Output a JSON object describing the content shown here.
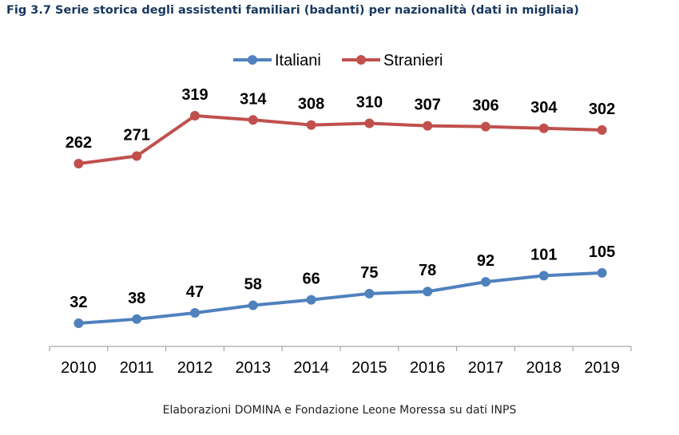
{
  "title": "Fig 3.7 Serie storica degli assistenti familiari (badanti) per nazionalità (dati in migliaia)",
  "source": "Elaborazioni DOMINA e Fondazione Leone Moressa su dati INPS",
  "chart_data": {
    "type": "line",
    "title": "Fig 3.7 Serie storica degli assistenti familiari (badanti) per nazionalità (dati in migliaia)",
    "xlabel": "",
    "ylabel": "",
    "categories": [
      "2010",
      "2011",
      "2012",
      "2013",
      "2014",
      "2015",
      "2016",
      "2017",
      "2018",
      "2019"
    ],
    "series": [
      {
        "name": "Italiani",
        "color": "#4f81bd",
        "values": [
          32,
          38,
          47,
          58,
          66,
          75,
          78,
          92,
          101,
          105
        ]
      },
      {
        "name": "Stranieri",
        "color": "#c0504d",
        "values": [
          262,
          271,
          319,
          314,
          308,
          310,
          307,
          306,
          304,
          302
        ]
      }
    ],
    "ylim": [
      0,
      350
    ],
    "grid": false,
    "data_labels": true,
    "legend": "top-center"
  }
}
